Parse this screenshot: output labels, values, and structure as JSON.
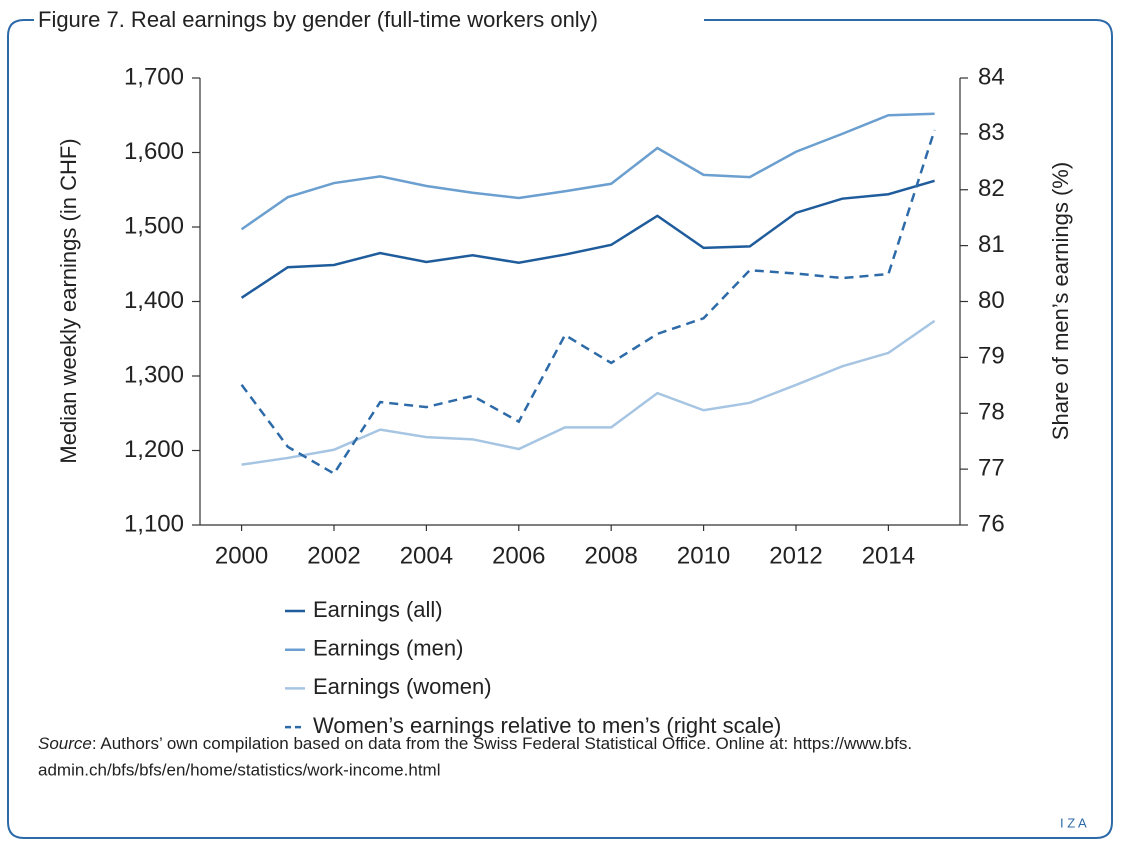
{
  "chart_data": {
    "type": "line",
    "title": "Figure 7. Real earnings by gender (full-time workers only)",
    "y_label": "Median weekly earnings (in CHF)",
    "y2_label": "Share of men’s earnings (%)",
    "x": [
      2000,
      2001,
      2002,
      2003,
      2004,
      2005,
      2006,
      2007,
      2008,
      2009,
      2010,
      2011,
      2012,
      2013,
      2014,
      2015
    ],
    "xlim": [
      1999.1,
      2015.55
    ],
    "xticks": [
      2000,
      2002,
      2004,
      2006,
      2008,
      2010,
      2012,
      2014
    ],
    "ylim": [
      1100,
      1700
    ],
    "yticks": [
      {
        "value": 1100,
        "label": "1,100"
      },
      {
        "value": 1200,
        "label": "1,200"
      },
      {
        "value": 1300,
        "label": "1,300"
      },
      {
        "value": 1400,
        "label": "1,400"
      },
      {
        "value": 1500,
        "label": "1,500"
      },
      {
        "value": 1600,
        "label": "1,600"
      },
      {
        "value": 1700,
        "label": "1,700"
      }
    ],
    "y2lim": [
      76,
      84
    ],
    "y2ticks": [
      76,
      77,
      78,
      79,
      80,
      81,
      82,
      83,
      84
    ],
    "series": [
      {
        "name": "Earnings (all)",
        "color": "#1f5c9c",
        "dash": false,
        "values": [
          1405,
          1446,
          1449,
          1465,
          1453,
          1462,
          1452,
          1463,
          1476,
          1515,
          1472,
          1474,
          1519,
          1538,
          1544,
          1562
        ]
      },
      {
        "name": "Earnings (men)",
        "color": "#6b9fd0",
        "dash": false,
        "values": [
          1497,
          1540,
          1559,
          1568,
          1555,
          1546,
          1539,
          1548,
          1558,
          1606,
          1570,
          1567,
          1601,
          1625,
          1650,
          1652
        ]
      },
      {
        "name": "Earnings (women)",
        "color": "#a6c5e3",
        "dash": false,
        "values": [
          1181,
          1190,
          1201,
          1228,
          1218,
          1215,
          1202,
          1231,
          1231,
          1277,
          1254,
          1264,
          1288,
          1313,
          1331,
          1374
        ]
      },
      {
        "name": "Women’s earnings relative to men’s (right scale)",
        "color": "#2d6aa8",
        "dash": true,
        "axis": "y2",
        "values": [
          78.51,
          77.4,
          76.92,
          78.2,
          78.11,
          78.31,
          77.85,
          79.4,
          78.9,
          79.42,
          79.7,
          80.56,
          80.5,
          80.42,
          80.49,
          83.07
        ]
      }
    ],
    "source_label": "Source",
    "source_line1": ": Authors’ own compilation based on data from the Swiss Federal Statistical Office. Online at: https://www.bfs.",
    "source_line2": "admin.ch/bfs/bfs/en/home/statistics/work-income.html",
    "logo": "I Z A"
  }
}
